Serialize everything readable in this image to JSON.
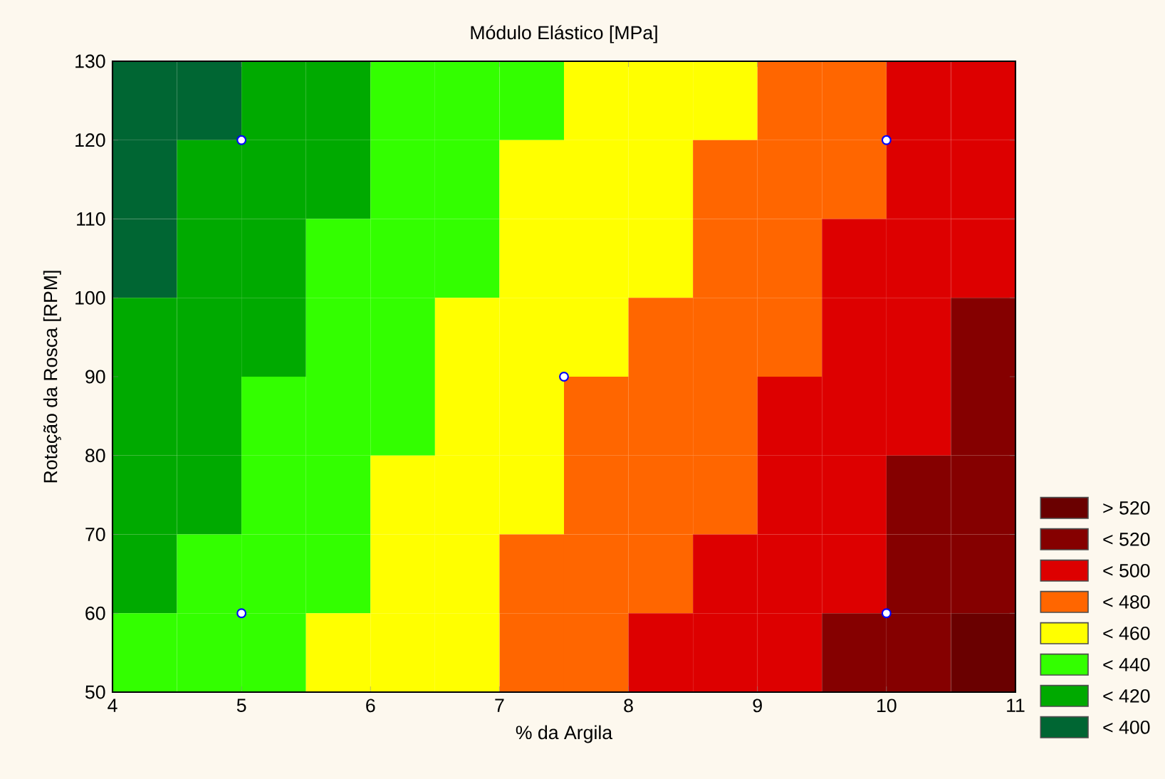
{
  "chart_data": {
    "type": "heatmap",
    "title": "Módulo Elástico [MPa]",
    "xlabel": "% da Argila",
    "ylabel": "Rotação da Rosca [RPM]",
    "xlim": [
      4,
      11
    ],
    "xticks": [
      4,
      5,
      6,
      7,
      8,
      9,
      10,
      11
    ],
    "ylim": [
      50,
      130
    ],
    "yticks": [
      50,
      60,
      70,
      80,
      90,
      100,
      110,
      120,
      130
    ],
    "cells": [
      [
        390,
        390,
        410,
        410,
        430,
        430,
        430,
        450,
        450,
        450,
        470,
        470,
        490,
        490
      ],
      [
        390,
        410,
        410,
        410,
        430,
        430,
        450,
        450,
        450,
        470,
        470,
        470,
        490,
        490
      ],
      [
        390,
        410,
        410,
        430,
        430,
        430,
        450,
        450,
        450,
        470,
        470,
        490,
        490,
        490
      ],
      [
        410,
        410,
        410,
        430,
        430,
        450,
        450,
        450,
        470,
        470,
        470,
        490,
        490,
        510
      ],
      [
        410,
        410,
        430,
        430,
        430,
        450,
        450,
        470,
        470,
        470,
        490,
        490,
        490,
        510
      ],
      [
        410,
        410,
        430,
        430,
        450,
        450,
        450,
        470,
        470,
        470,
        490,
        490,
        510,
        510
      ],
      [
        410,
        430,
        430,
        430,
        450,
        450,
        470,
        470,
        470,
        490,
        490,
        490,
        510,
        510
      ],
      [
        430,
        430,
        430,
        450,
        450,
        450,
        470,
        470,
        490,
        490,
        490,
        510,
        510,
        530
      ]
    ],
    "cticks": [
      {
        "value": 540,
        "label": "> 520"
      },
      {
        "value": 520,
        "label": "< 520"
      },
      {
        "value": 500,
        "label": "< 500"
      },
      {
        "value": 480,
        "label": "< 480"
      },
      {
        "value": 460,
        "label": "< 460"
      },
      {
        "value": 440,
        "label": "< 440"
      },
      {
        "value": 420,
        "label": "< 420"
      },
      {
        "value": 400,
        "label": "< 400"
      }
    ],
    "colors": [
      "#6a0000",
      "#850000",
      "#dd0000",
      "#ff6600",
      "#ffff00",
      "#33ff00",
      "#00aa00",
      "#006633"
    ],
    "series": [
      {
        "type": "scatter",
        "color": "#0000ff",
        "x": [
          5,
          5,
          7.5,
          10,
          10
        ],
        "values": [
          120,
          60,
          90,
          120,
          60
        ]
      }
    ],
    "marker": "circle"
  }
}
